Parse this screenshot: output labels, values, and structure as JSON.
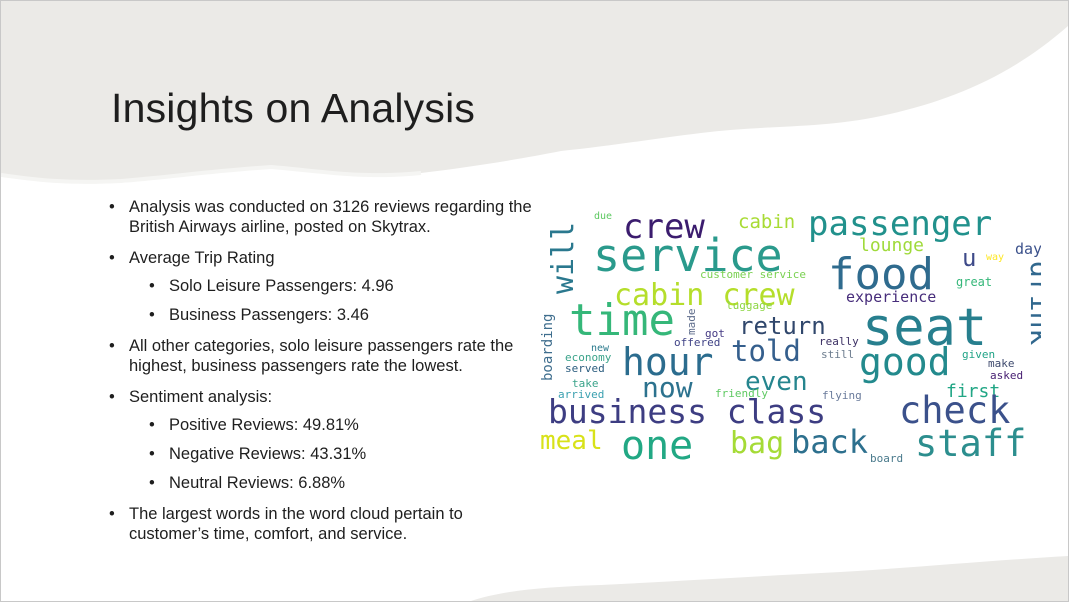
{
  "slide": {
    "title": "Insights on Analysis",
    "bullets": {
      "analysis": "Analysis was conducted on 3126 reviews regarding the British Airways airline, posted on Skytrax.",
      "rating_heading": "Average Trip Rating",
      "rating_solo": "Solo Leisure Passengers: 4.96",
      "rating_business": "Business Passengers: 3.46",
      "categories": "All other categories, solo leisure passengers rate the highest, business passengers rate the lowest.",
      "sentiment_heading": "Sentiment analysis:",
      "sentiment_positive": "Positive Reviews: 49.81%",
      "sentiment_negative": "Negative Reviews: 43.31%",
      "sentiment_neutral": "Neutral Reviews: 6.88%",
      "wordcloud_note": "The largest words in the word cloud pertain to customer’s time, comfort, and service."
    }
  },
  "wordcloud": {
    "words": [
      {
        "text": "due",
        "color": "#5ec962"
      },
      {
        "text": "crew",
        "color": "#3b1c6e"
      },
      {
        "text": "cabin",
        "color": "#a8db34"
      },
      {
        "text": "passenger",
        "color": "#21918c"
      },
      {
        "text": "will",
        "color": "#2a788e"
      },
      {
        "text": "service",
        "color": "#2a9a8c"
      },
      {
        "text": "lounge",
        "color": "#9fda3a"
      },
      {
        "text": "day",
        "color": "#3b518b"
      },
      {
        "text": "food",
        "color": "#2f6b8e"
      },
      {
        "text": "u",
        "color": "#3e4a89"
      },
      {
        "text": "way",
        "color": "#fde725"
      },
      {
        "text": "customer service",
        "color": "#7ad151"
      },
      {
        "text": "great",
        "color": "#35b779"
      },
      {
        "text": "drink",
        "color": "#31688e"
      },
      {
        "text": "cabin crew",
        "color": "#b5de2b"
      },
      {
        "text": "luggage",
        "color": "#8ed645"
      },
      {
        "text": "experience",
        "color": "#472d7b"
      },
      {
        "text": "seat",
        "color": "#277f8e"
      },
      {
        "text": "time",
        "color": "#35b779"
      },
      {
        "text": "made",
        "color": "#5d6b8a"
      },
      {
        "text": "return",
        "color": "#30476c"
      },
      {
        "text": "boarding",
        "color": "#3f6e8e"
      },
      {
        "text": "got",
        "color": "#443983"
      },
      {
        "text": "offered",
        "color": "#414487"
      },
      {
        "text": "really",
        "color": "#3b2f63"
      },
      {
        "text": "told",
        "color": "#355f8d"
      },
      {
        "text": "new",
        "color": "#2c7b8e"
      },
      {
        "text": "hour",
        "color": "#2b6c8e"
      },
      {
        "text": "still",
        "color": "#6c7c8e"
      },
      {
        "text": "good",
        "color": "#238a8d"
      },
      {
        "text": "given",
        "color": "#20a386"
      },
      {
        "text": "economy",
        "color": "#3aa38a"
      },
      {
        "text": "make",
        "color": "#3e4a6e"
      },
      {
        "text": "served",
        "color": "#2a5c7e"
      },
      {
        "text": "even",
        "color": "#25858e"
      },
      {
        "text": "asked",
        "color": "#482173"
      },
      {
        "text": "take",
        "color": "#3aa38a"
      },
      {
        "text": "now",
        "color": "#2c728e"
      },
      {
        "text": "friendly",
        "color": "#5ec962"
      },
      {
        "text": "first",
        "color": "#21a685"
      },
      {
        "text": "arrived",
        "color": "#3aa0b0"
      },
      {
        "text": "flying",
        "color": "#6a7b9b"
      },
      {
        "text": "business class",
        "color": "#3d3d82"
      },
      {
        "text": "check",
        "color": "#3b518b"
      },
      {
        "text": "meal",
        "color": "#d8e219"
      },
      {
        "text": "one",
        "color": "#22a884"
      },
      {
        "text": "bag",
        "color": "#a5db36"
      },
      {
        "text": "back",
        "color": "#2d708e"
      },
      {
        "text": "staff",
        "color": "#2c8e8e"
      },
      {
        "text": "board",
        "color": "#4a7a8c"
      }
    ]
  }
}
